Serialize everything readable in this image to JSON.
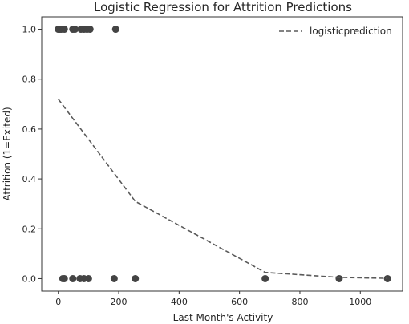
{
  "chart_data": {
    "type": "scatter",
    "title": "Logistic Regression for Attrition Predictions",
    "xlabel": "Last Month's Activity",
    "ylabel": "Attrition (1=Exited)",
    "xlim": [
      -55,
      1140
    ],
    "ylim": [
      -0.05,
      1.05
    ],
    "x_ticks": [
      0,
      200,
      400,
      600,
      800,
      1000
    ],
    "y_ticks": [
      0.0,
      0.2,
      0.4,
      0.6,
      0.8,
      1.0
    ],
    "x_tick_labels": [
      "0",
      "200",
      "400",
      "600",
      "800",
      "1000"
    ],
    "y_tick_labels": [
      "0.0",
      "0.2",
      "0.4",
      "0.6",
      "0.8",
      "1.0"
    ],
    "grid": false,
    "legend_position": "top-right",
    "scatter_series": {
      "color": "#444444",
      "points": [
        {
          "x": 0,
          "y": 1
        },
        {
          "x": 5,
          "y": 1
        },
        {
          "x": 10,
          "y": 1
        },
        {
          "x": 20,
          "y": 1
        },
        {
          "x": 48,
          "y": 1
        },
        {
          "x": 55,
          "y": 1
        },
        {
          "x": 75,
          "y": 1
        },
        {
          "x": 85,
          "y": 1
        },
        {
          "x": 95,
          "y": 1
        },
        {
          "x": 105,
          "y": 1
        },
        {
          "x": 190,
          "y": 1
        },
        {
          "x": 15,
          "y": 0
        },
        {
          "x": 20,
          "y": 0
        },
        {
          "x": 48,
          "y": 0
        },
        {
          "x": 72,
          "y": 0
        },
        {
          "x": 85,
          "y": 0
        },
        {
          "x": 100,
          "y": 0
        },
        {
          "x": 185,
          "y": 0
        },
        {
          "x": 255,
          "y": 0
        },
        {
          "x": 685,
          "y": 0
        },
        {
          "x": 930,
          "y": 0
        },
        {
          "x": 1090,
          "y": 0
        }
      ]
    },
    "line_series": {
      "name": "logisticprediction",
      "color": "#5a5a5a",
      "style": "dashed",
      "points": [
        {
          "x": 0,
          "y": 0.72
        },
        {
          "x": 255,
          "y": 0.31
        },
        {
          "x": 685,
          "y": 0.025
        },
        {
          "x": 930,
          "y": 0.005
        },
        {
          "x": 1090,
          "y": 0.001
        }
      ]
    }
  }
}
